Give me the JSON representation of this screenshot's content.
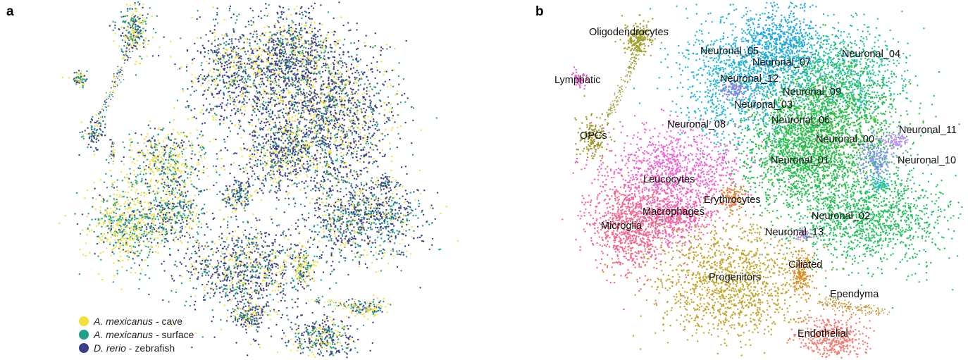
{
  "panels": [
    {
      "letter": "a"
    },
    {
      "letter": "b"
    }
  ],
  "legend": [
    {
      "species": "A. mexicanus",
      "group": "- cave",
      "color": "#f2e03c",
      "icon": "filled-circle"
    },
    {
      "species": "A. mexicanus",
      "group": "- surface",
      "color": "#1fa187",
      "icon": "filled-circle"
    },
    {
      "species": "D. rerio",
      "group": "- zebrafish",
      "color": "#3b3f8c",
      "icon": "filled-circle"
    }
  ],
  "chart_data": [
    {
      "type": "scatter",
      "title": "",
      "xlabel": "",
      "ylabel": "",
      "grid": false,
      "legend_position": "bottom-left",
      "series": [
        {
          "name": "A. mexicanus - cave",
          "color": "#f2e03c"
        },
        {
          "name": "A. mexicanus - surface",
          "color": "#1fa187"
        },
        {
          "name": "D. rerio - zebrafish",
          "color": "#3b3f8c"
        }
      ]
    },
    {
      "type": "scatter",
      "title": "",
      "xlabel": "",
      "ylabel": "",
      "grid": false,
      "cluster_labels": [
        {
          "label": "Oligodendrocytes",
          "color": "#a0a02a"
        },
        {
          "label": "Lymphatic",
          "color": "#e55fc8"
        },
        {
          "label": "OPCs",
          "color": "#9c9a2a"
        },
        {
          "label": "Neuronal_05",
          "color": "#1fb5d8"
        },
        {
          "label": "Neuronal_07",
          "color": "#1fa6e8"
        },
        {
          "label": "Neuronal_12",
          "color": "#9a7be6"
        },
        {
          "label": "Neuronal_04",
          "color": "#1cc39a"
        },
        {
          "label": "Neuronal_09",
          "color": "#17b89a"
        },
        {
          "label": "Neuronal_03",
          "color": "#1ab5a8"
        },
        {
          "label": "Neuronal_08",
          "color": "#1db5c9"
        },
        {
          "label": "Neuronal_06",
          "color": "#27c06a"
        },
        {
          "label": "Neuronal_00",
          "color": "#2ebd3c"
        },
        {
          "label": "Neuronal_11",
          "color": "#b890f0"
        },
        {
          "label": "Neuronal_01",
          "color": "#1fbf4f"
        },
        {
          "label": "Neuronal_10",
          "color": "#7f95f0"
        },
        {
          "label": "Leucocytes",
          "color": "#f060d0"
        },
        {
          "label": "Erythrocytes",
          "color": "#e8823a"
        },
        {
          "label": "Macrophages",
          "color": "#f55fa8"
        },
        {
          "label": "Microglia",
          "color": "#f5638a"
        },
        {
          "label": "Neuronal_02",
          "color": "#22c25e"
        },
        {
          "label": "Neuronal_13",
          "color": "#b98be0"
        },
        {
          "label": "Ciliated",
          "color": "#d98a20"
        },
        {
          "label": "Progenitors",
          "color": "#c3a52a"
        },
        {
          "label": "Ependyma",
          "color": "#c28c22"
        },
        {
          "label": "Endothelial",
          "color": "#f57a70"
        }
      ]
    }
  ]
}
